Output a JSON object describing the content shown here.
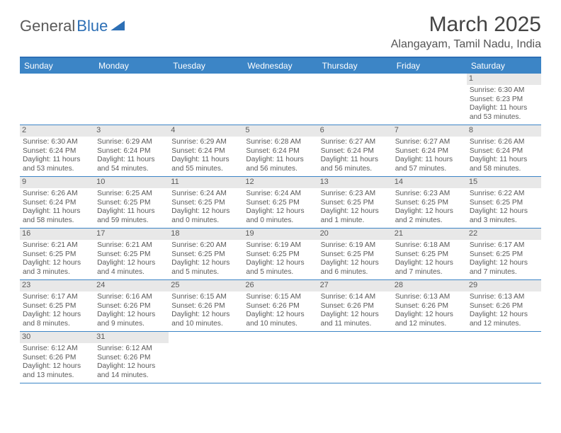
{
  "logo": {
    "part1": "General",
    "part2": "Blue"
  },
  "title": "March 2025",
  "location": "Alangayam, Tamil Nadu, India",
  "day_headers": [
    "Sunday",
    "Monday",
    "Tuesday",
    "Wednesday",
    "Thursday",
    "Friday",
    "Saturday"
  ],
  "colors": {
    "header_bg": "#3c85c6",
    "border": "#2d6fb5",
    "daynum_bg": "#e8e8e8",
    "text": "#5a5a5a"
  },
  "weeks": [
    [
      null,
      null,
      null,
      null,
      null,
      null,
      {
        "n": "1",
        "sr": "Sunrise: 6:30 AM",
        "ss": "Sunset: 6:23 PM",
        "dl": "Daylight: 11 hours and 53 minutes."
      }
    ],
    [
      {
        "n": "2",
        "sr": "Sunrise: 6:30 AM",
        "ss": "Sunset: 6:24 PM",
        "dl": "Daylight: 11 hours and 53 minutes."
      },
      {
        "n": "3",
        "sr": "Sunrise: 6:29 AM",
        "ss": "Sunset: 6:24 PM",
        "dl": "Daylight: 11 hours and 54 minutes."
      },
      {
        "n": "4",
        "sr": "Sunrise: 6:29 AM",
        "ss": "Sunset: 6:24 PM",
        "dl": "Daylight: 11 hours and 55 minutes."
      },
      {
        "n": "5",
        "sr": "Sunrise: 6:28 AM",
        "ss": "Sunset: 6:24 PM",
        "dl": "Daylight: 11 hours and 56 minutes."
      },
      {
        "n": "6",
        "sr": "Sunrise: 6:27 AM",
        "ss": "Sunset: 6:24 PM",
        "dl": "Daylight: 11 hours and 56 minutes."
      },
      {
        "n": "7",
        "sr": "Sunrise: 6:27 AM",
        "ss": "Sunset: 6:24 PM",
        "dl": "Daylight: 11 hours and 57 minutes."
      },
      {
        "n": "8",
        "sr": "Sunrise: 6:26 AM",
        "ss": "Sunset: 6:24 PM",
        "dl": "Daylight: 11 hours and 58 minutes."
      }
    ],
    [
      {
        "n": "9",
        "sr": "Sunrise: 6:26 AM",
        "ss": "Sunset: 6:24 PM",
        "dl": "Daylight: 11 hours and 58 minutes."
      },
      {
        "n": "10",
        "sr": "Sunrise: 6:25 AM",
        "ss": "Sunset: 6:25 PM",
        "dl": "Daylight: 11 hours and 59 minutes."
      },
      {
        "n": "11",
        "sr": "Sunrise: 6:24 AM",
        "ss": "Sunset: 6:25 PM",
        "dl": "Daylight: 12 hours and 0 minutes."
      },
      {
        "n": "12",
        "sr": "Sunrise: 6:24 AM",
        "ss": "Sunset: 6:25 PM",
        "dl": "Daylight: 12 hours and 0 minutes."
      },
      {
        "n": "13",
        "sr": "Sunrise: 6:23 AM",
        "ss": "Sunset: 6:25 PM",
        "dl": "Daylight: 12 hours and 1 minute."
      },
      {
        "n": "14",
        "sr": "Sunrise: 6:23 AM",
        "ss": "Sunset: 6:25 PM",
        "dl": "Daylight: 12 hours and 2 minutes."
      },
      {
        "n": "15",
        "sr": "Sunrise: 6:22 AM",
        "ss": "Sunset: 6:25 PM",
        "dl": "Daylight: 12 hours and 3 minutes."
      }
    ],
    [
      {
        "n": "16",
        "sr": "Sunrise: 6:21 AM",
        "ss": "Sunset: 6:25 PM",
        "dl": "Daylight: 12 hours and 3 minutes."
      },
      {
        "n": "17",
        "sr": "Sunrise: 6:21 AM",
        "ss": "Sunset: 6:25 PM",
        "dl": "Daylight: 12 hours and 4 minutes."
      },
      {
        "n": "18",
        "sr": "Sunrise: 6:20 AM",
        "ss": "Sunset: 6:25 PM",
        "dl": "Daylight: 12 hours and 5 minutes."
      },
      {
        "n": "19",
        "sr": "Sunrise: 6:19 AM",
        "ss": "Sunset: 6:25 PM",
        "dl": "Daylight: 12 hours and 5 minutes."
      },
      {
        "n": "20",
        "sr": "Sunrise: 6:19 AM",
        "ss": "Sunset: 6:25 PM",
        "dl": "Daylight: 12 hours and 6 minutes."
      },
      {
        "n": "21",
        "sr": "Sunrise: 6:18 AM",
        "ss": "Sunset: 6:25 PM",
        "dl": "Daylight: 12 hours and 7 minutes."
      },
      {
        "n": "22",
        "sr": "Sunrise: 6:17 AM",
        "ss": "Sunset: 6:25 PM",
        "dl": "Daylight: 12 hours and 7 minutes."
      }
    ],
    [
      {
        "n": "23",
        "sr": "Sunrise: 6:17 AM",
        "ss": "Sunset: 6:25 PM",
        "dl": "Daylight: 12 hours and 8 minutes."
      },
      {
        "n": "24",
        "sr": "Sunrise: 6:16 AM",
        "ss": "Sunset: 6:26 PM",
        "dl": "Daylight: 12 hours and 9 minutes."
      },
      {
        "n": "25",
        "sr": "Sunrise: 6:15 AM",
        "ss": "Sunset: 6:26 PM",
        "dl": "Daylight: 12 hours and 10 minutes."
      },
      {
        "n": "26",
        "sr": "Sunrise: 6:15 AM",
        "ss": "Sunset: 6:26 PM",
        "dl": "Daylight: 12 hours and 10 minutes."
      },
      {
        "n": "27",
        "sr": "Sunrise: 6:14 AM",
        "ss": "Sunset: 6:26 PM",
        "dl": "Daylight: 12 hours and 11 minutes."
      },
      {
        "n": "28",
        "sr": "Sunrise: 6:13 AM",
        "ss": "Sunset: 6:26 PM",
        "dl": "Daylight: 12 hours and 12 minutes."
      },
      {
        "n": "29",
        "sr": "Sunrise: 6:13 AM",
        "ss": "Sunset: 6:26 PM",
        "dl": "Daylight: 12 hours and 12 minutes."
      }
    ],
    [
      {
        "n": "30",
        "sr": "Sunrise: 6:12 AM",
        "ss": "Sunset: 6:26 PM",
        "dl": "Daylight: 12 hours and 13 minutes."
      },
      {
        "n": "31",
        "sr": "Sunrise: 6:12 AM",
        "ss": "Sunset: 6:26 PM",
        "dl": "Daylight: 12 hours and 14 minutes."
      },
      null,
      null,
      null,
      null,
      null
    ]
  ]
}
